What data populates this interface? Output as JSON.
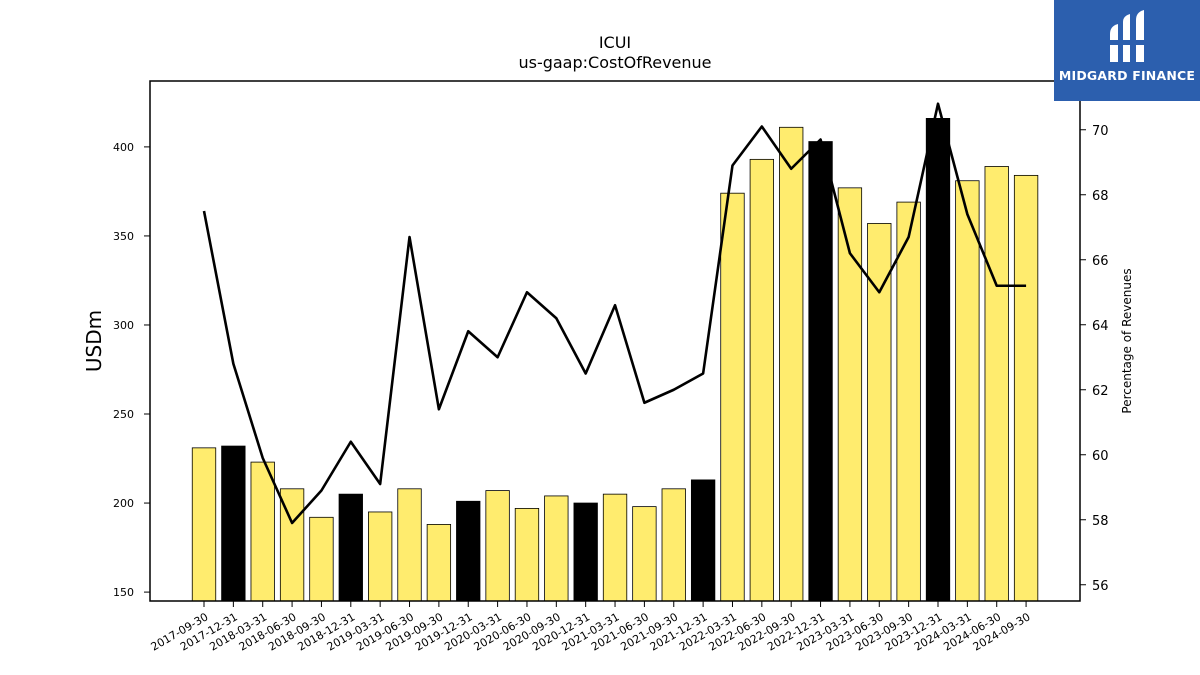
{
  "chart_data": {
    "type": "bar",
    "title": "ICUI",
    "subtitle": "us-gaap:CostOfRevenue",
    "ylabel": "USDm",
    "y2label": "Percentage of Revenues",
    "ylim": [
      145,
      437
    ],
    "y2lim": [
      55.5,
      71.5
    ],
    "yticks": [
      150,
      200,
      250,
      300,
      350,
      400
    ],
    "y2ticks": [
      56,
      58,
      60,
      62,
      64,
      66,
      68,
      70
    ],
    "categories": [
      "2017-09-30",
      "2017-12-31",
      "2018-03-31",
      "2018-06-30",
      "2018-09-30",
      "2018-12-31",
      "2019-03-31",
      "2019-06-30",
      "2019-09-30",
      "2019-12-31",
      "2020-03-31",
      "2020-06-30",
      "2020-09-30",
      "2020-12-31",
      "2021-03-31",
      "2021-06-30",
      "2021-09-30",
      "2021-12-31",
      "2022-03-31",
      "2022-06-30",
      "2022-09-30",
      "2022-12-31",
      "2023-03-31",
      "2023-06-30",
      "2023-09-30",
      "2023-12-31",
      "2024-03-31",
      "2024-06-30",
      "2024-09-30"
    ],
    "series": [
      {
        "type": "bar",
        "values": [
          231,
          232,
          223,
          208,
          192,
          205,
          195,
          208,
          188,
          201,
          207,
          197,
          204,
          200,
          205,
          198,
          208,
          213,
          374,
          393,
          411,
          403,
          377,
          357,
          369,
          416,
          381,
          389,
          384
        ],
        "colors": [
          "#ffec6e",
          "#000000",
          "#ffec6e",
          "#ffec6e",
          "#ffec6e",
          "#000000",
          "#ffec6e",
          "#ffec6e",
          "#ffec6e",
          "#000000",
          "#ffec6e",
          "#ffec6e",
          "#ffec6e",
          "#000000",
          "#ffec6e",
          "#ffec6e",
          "#ffec6e",
          "#000000",
          "#ffec6e",
          "#ffec6e",
          "#ffec6e",
          "#000000",
          "#ffec6e",
          "#ffec6e",
          "#ffec6e",
          "#000000",
          "#ffec6e",
          "#ffec6e",
          "#ffec6e"
        ]
      },
      {
        "type": "line",
        "axis": "right",
        "values": [
          67.5,
          62.8,
          59.9,
          57.9,
          58.9,
          60.4,
          59.1,
          66.7,
          61.4,
          63.8,
          63.0,
          65.0,
          64.2,
          62.5,
          64.6,
          61.6,
          62.0,
          62.5,
          68.9,
          70.1,
          68.8,
          69.7,
          66.2,
          65.0,
          66.7,
          70.8,
          67.4,
          65.2,
          65.2
        ]
      }
    ],
    "grid": false
  },
  "logo": {
    "text": "MIDGARD FINANCE"
  }
}
